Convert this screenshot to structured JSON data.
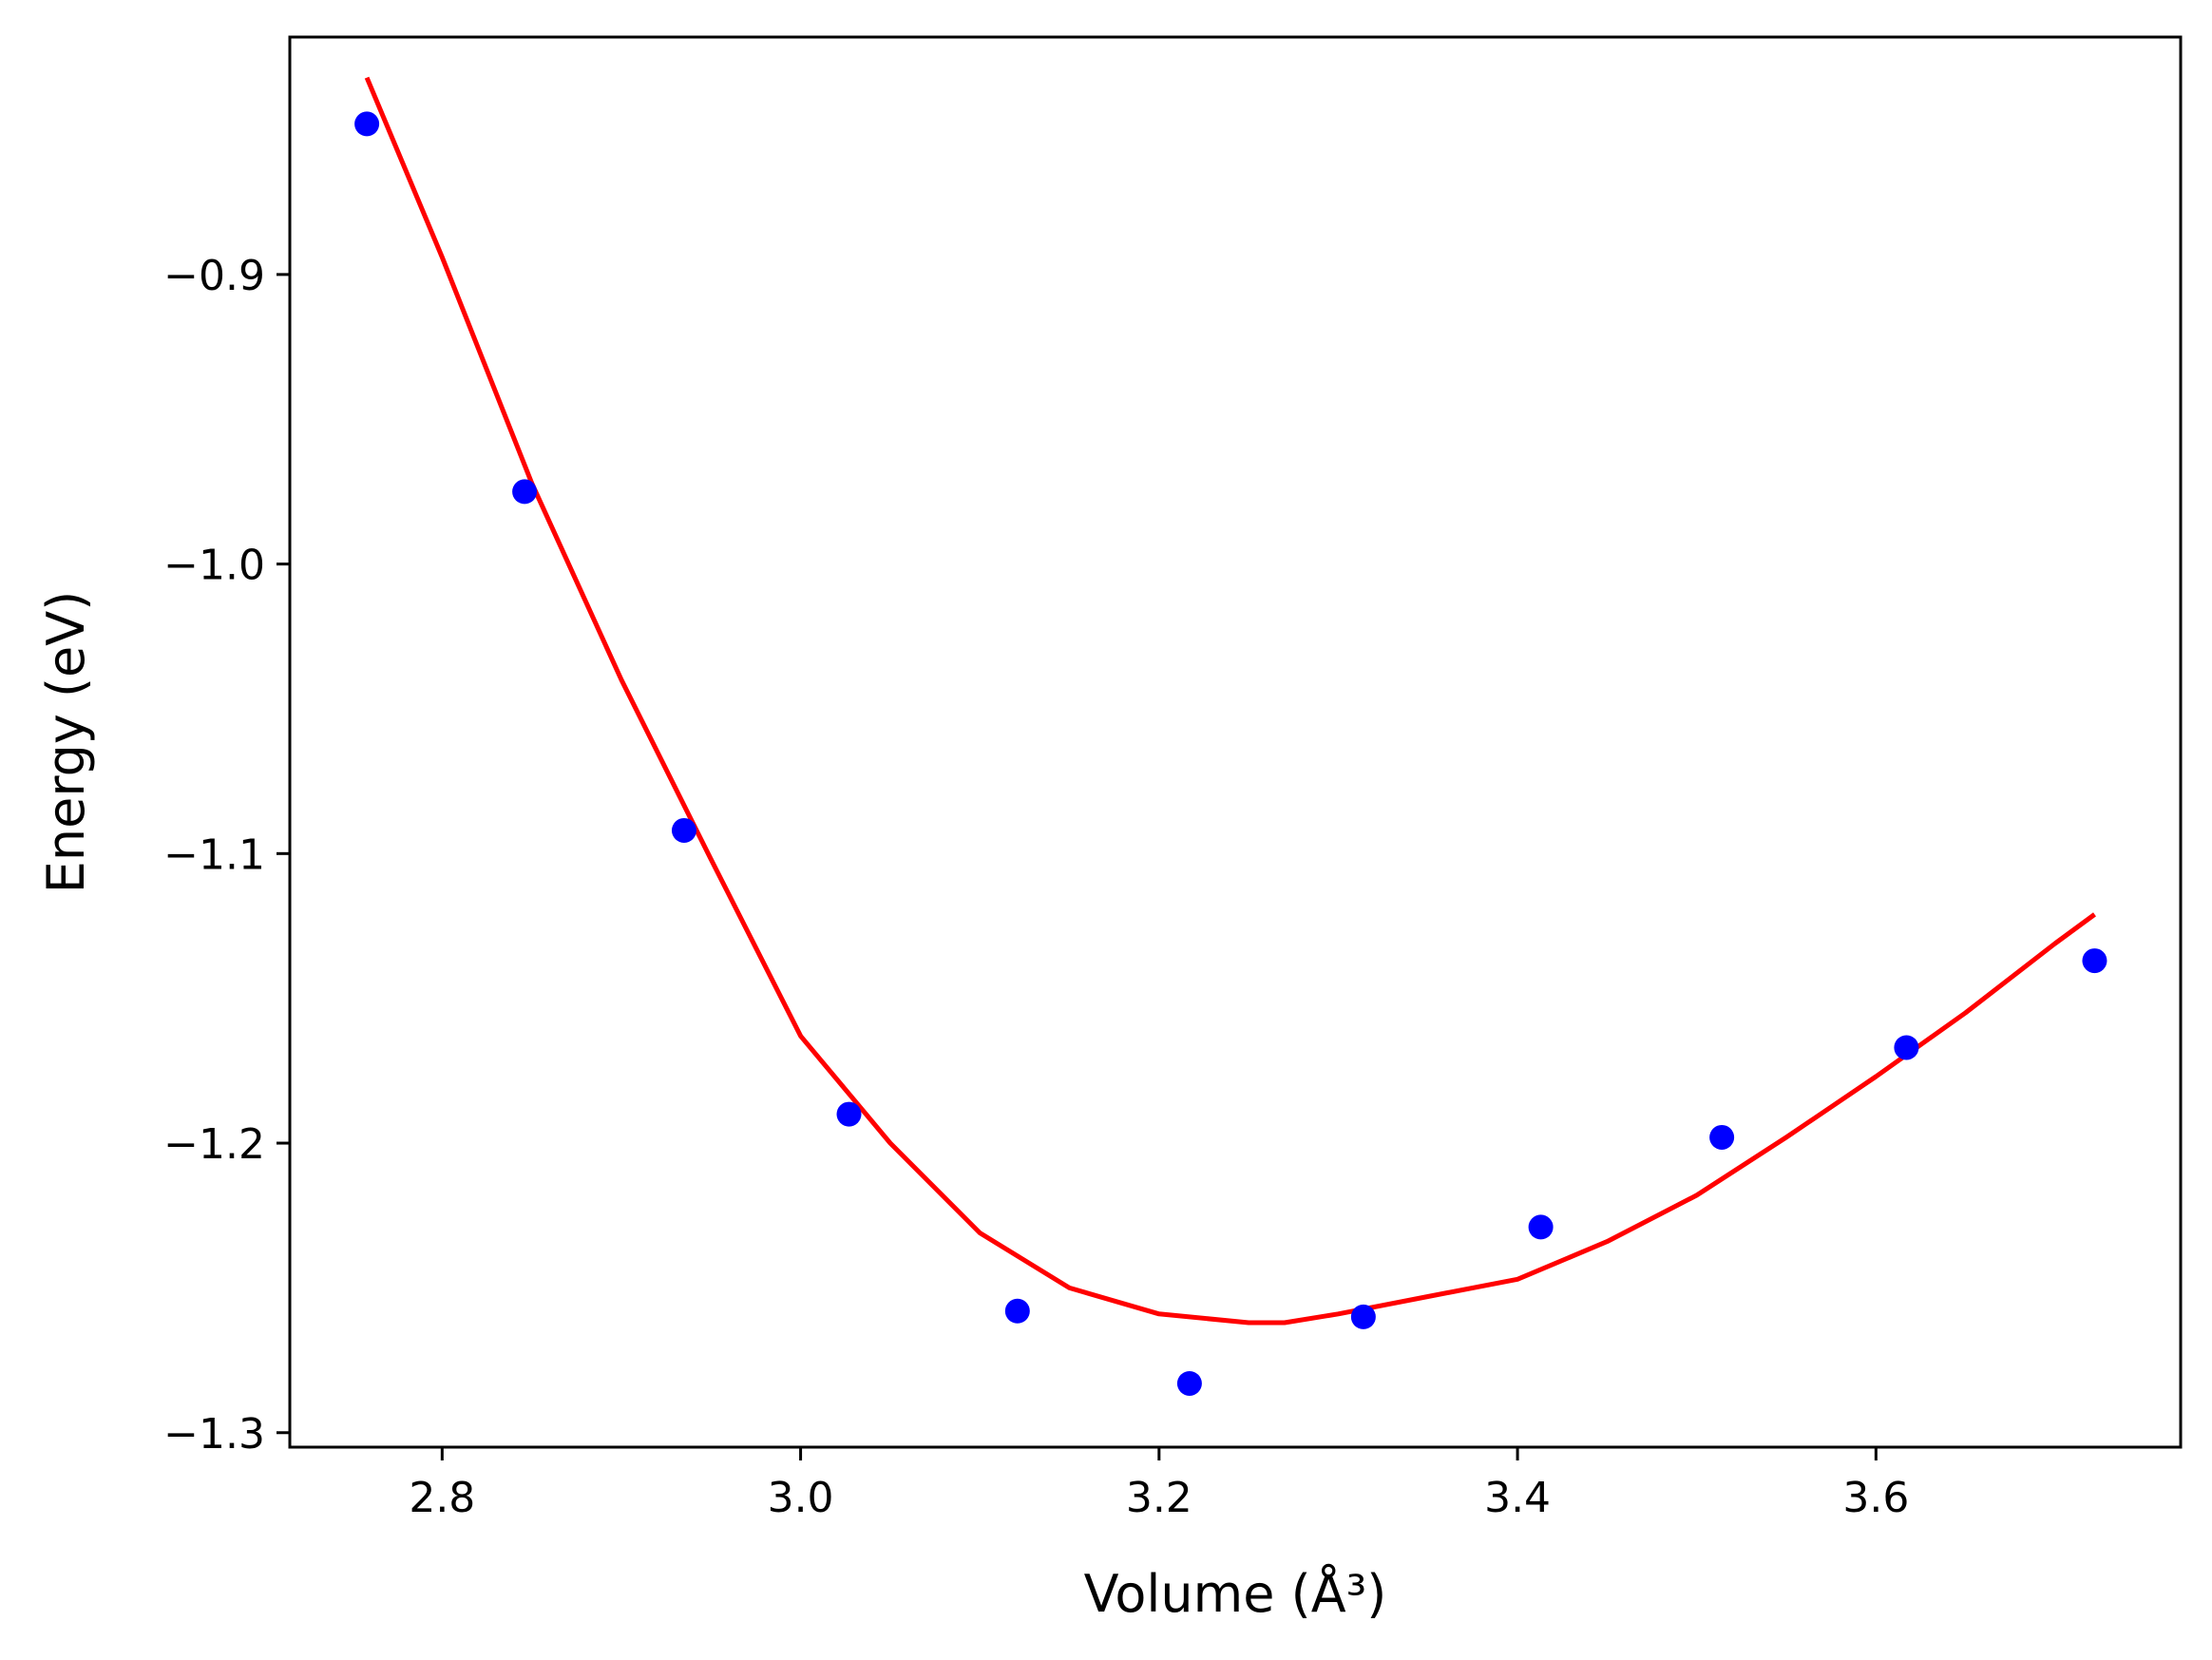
{
  "chart_data": {
    "type": "scatter",
    "title": "",
    "xlabel": "Volume (Å³)",
    "ylabel": "Energy (eV)",
    "xlim": [
      2.715,
      3.77
    ],
    "ylim": [
      -1.305,
      -0.818
    ],
    "grid": false,
    "legend": "none",
    "x_ticks": [
      2.8,
      3.0,
      3.2,
      3.4,
      3.6
    ],
    "x_tick_labels": [
      "2.8",
      "3.0",
      "3.2",
      "3.4",
      "3.6"
    ],
    "y_ticks": [
      -0.9,
      -1.0,
      -1.1,
      -1.2,
      -1.3
    ],
    "y_tick_labels": [
      "−0.9",
      "−1.0",
      "−1.1",
      "−1.2",
      "−1.3"
    ],
    "series": [
      {
        "type": "scatter",
        "color": "#0000ff",
        "x": [
          2.758,
          2.846,
          2.935,
          3.027,
          3.121,
          3.217,
          3.314,
          3.413,
          3.514,
          3.617,
          3.722
        ],
        "y": [
          -0.848,
          -0.975,
          -1.092,
          -1.19,
          -1.258,
          -1.283,
          -1.26,
          -1.229,
          -1.198,
          -1.167,
          -1.137
        ]
      },
      {
        "type": "line",
        "color": "#ff0000",
        "x": [
          2.758,
          2.8,
          2.85,
          2.9,
          2.95,
          3.0,
          3.05,
          3.1,
          3.15,
          3.2,
          3.25,
          3.27,
          3.3,
          3.35,
          3.4,
          3.45,
          3.5,
          3.55,
          3.6,
          3.65,
          3.7,
          3.722
        ],
        "y": [
          -0.832,
          -0.894,
          -0.972,
          -1.04,
          -1.102,
          -1.163,
          -1.2,
          -1.231,
          -1.25,
          -1.259,
          -1.262,
          -1.262,
          -1.259,
          -1.253,
          -1.247,
          -1.234,
          -1.218,
          -1.198,
          -1.177,
          -1.155,
          -1.131,
          -1.121
        ]
      }
    ]
  }
}
